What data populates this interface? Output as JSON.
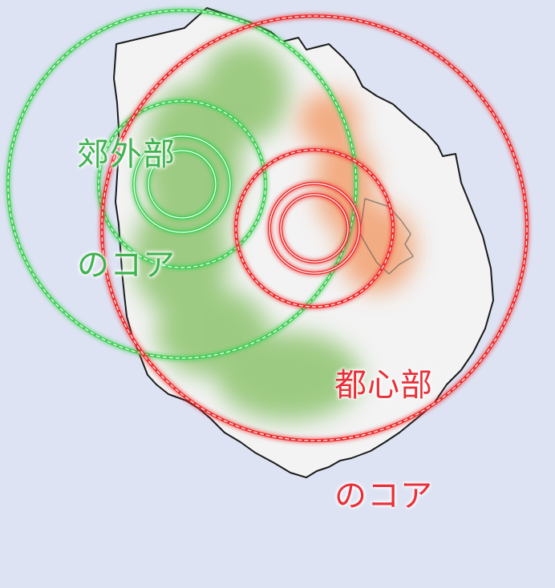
{
  "map": {
    "background": "#dde3f3",
    "land_color": "#f3f3f3",
    "suburban_color": "#8fc46f",
    "urban_color": "#f2a070",
    "suburban_ring_color": "#3fcf55",
    "urban_ring_color": "#ef2b2b"
  },
  "suburban_core": {
    "line1": "郊外部",
    "line2": "のコア"
  },
  "urban_core": {
    "line1": "都心部",
    "line2": "のコア"
  }
}
